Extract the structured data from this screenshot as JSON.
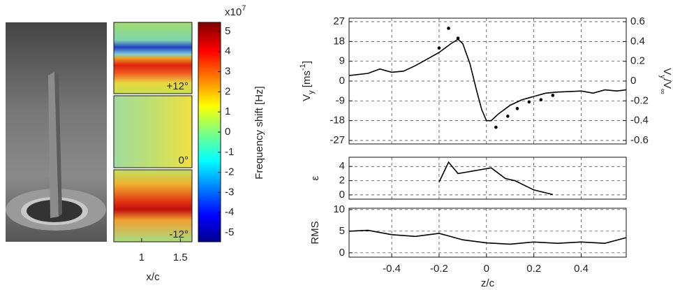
{
  "chart_data": [
    {
      "type": "heatmap",
      "panel_labels": [
        "+12°",
        "0°",
        "-12°"
      ],
      "xlabel": "x/c",
      "xlim": [
        0.64,
        1.65
      ],
      "xticks": [
        1,
        1.5
      ],
      "colorbar": {
        "label": "Frequency shift [Hz]",
        "exponent_base": "x10",
        "exponent_power": "7",
        "lim": [
          -5.45,
          5.45
        ],
        "ticks": [
          -5,
          -4,
          -3,
          -2,
          -1,
          0,
          1,
          2,
          3,
          4,
          5
        ]
      }
    },
    {
      "type": "line",
      "xlabel": "z/c",
      "xlim": [
        -0.58,
        0.59
      ],
      "xticks": [
        -0.4,
        -0.2,
        0,
        0.2,
        0.4
      ],
      "grid": true,
      "panels": [
        {
          "ylabel_parts": [
            "V",
            "y",
            " [ms",
            "-1",
            "]"
          ],
          "ylabel_styles": [
            "",
            "sub",
            "",
            "sup",
            ""
          ],
          "ylim": [
            -28.6,
            28.6
          ],
          "yticks": [
            -27,
            -18,
            -9,
            0,
            9,
            18,
            27
          ],
          "y2label_parts": [
            "V",
            "y",
            "/V",
            "∞"
          ],
          "y2label_styles": [
            "",
            "sub",
            "",
            "sub"
          ],
          "y2lim": [
            -0.636,
            0.636
          ],
          "y2ticks": [
            -0.6,
            -0.4,
            -0.2,
            0,
            0.2,
            0.4,
            0.6
          ],
          "series": [
            {
              "style": "line",
              "color": "#000",
              "x": [
                -0.58,
                -0.5,
                -0.45,
                -0.4,
                -0.35,
                -0.3,
                -0.25,
                -0.2,
                -0.15,
                -0.12,
                -0.1,
                -0.07,
                -0.04,
                -0.02,
                0,
                0.02,
                0.05,
                0.1,
                0.15,
                0.2,
                0.25,
                0.3,
                0.35,
                0.4,
                0.45,
                0.5,
                0.55,
                0.59
              ],
              "values": [
                2.5,
                3.5,
                5.5,
                4,
                4.5,
                7,
                10,
                13,
                17,
                19,
                17,
                8,
                -5,
                -13,
                -18,
                -18,
                -15,
                -11,
                -8.5,
                -7,
                -5.5,
                -5,
                -4.8,
                -4.5,
                -5.5,
                -4,
                -4.5,
                -4
              ]
            },
            {
              "style": "dots",
              "color": "#000",
              "x": [
                -0.2,
                -0.16,
                -0.12,
                0.04,
                0.09,
                0.13,
                0.18,
                0.23,
                0.28
              ],
              "values": [
                15,
                24,
                19.5,
                -21,
                -16,
                -12.5,
                -9.5,
                -8.5,
                -6.5
              ]
            }
          ]
        },
        {
          "ylabel_parts": [
            "ε"
          ],
          "ylabel_styles": [
            ""
          ],
          "ylim": [
            -0.6,
            5.3
          ],
          "yticks": [
            0,
            2,
            4
          ],
          "series": [
            {
              "style": "line",
              "color": "#000",
              "x": [
                -0.2,
                -0.16,
                -0.12,
                0.02,
                0.08,
                0.12,
                0.2,
                0.28
              ],
              "values": [
                1.8,
                4.6,
                3,
                3.8,
                2.3,
                2,
                0.7,
                0.05
              ]
            }
          ]
        },
        {
          "ylabel_parts": [
            "RMS"
          ],
          "ylabel_styles": [
            ""
          ],
          "ylim": [
            -1,
            10.3
          ],
          "yticks": [
            0,
            5,
            10
          ],
          "series": [
            {
              "style": "line",
              "color": "#000",
              "x": [
                -0.58,
                -0.5,
                -0.4,
                -0.3,
                -0.2,
                -0.1,
                0,
                0.1,
                0.2,
                0.3,
                0.4,
                0.5,
                0.59
              ],
              "values": [
                5,
                5.2,
                4.2,
                3.8,
                4.5,
                3,
                2.3,
                2,
                2.5,
                2.2,
                2.5,
                2.2,
                3.5
              ]
            }
          ]
        }
      ]
    }
  ]
}
